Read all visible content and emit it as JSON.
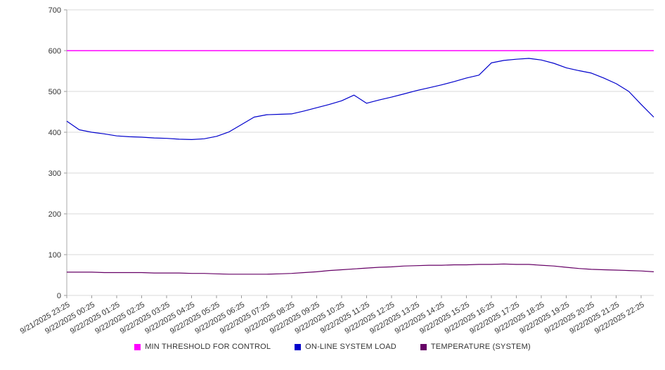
{
  "colors": {
    "background": "#ffffff",
    "grid": "#d9d9d9",
    "axis": "#aaaaaa",
    "tick": "#999999",
    "label": "#333333"
  },
  "chart_data": {
    "type": "line",
    "title": "",
    "xlabel": "",
    "ylabel": "",
    "grid": "horizontal-only",
    "legend_position": "bottom",
    "y_axis": {
      "min": 0,
      "max": 700,
      "tick_step": 100,
      "ticks": [
        0,
        100,
        200,
        300,
        400,
        500,
        600,
        700
      ]
    },
    "samples_per_tick": 2,
    "x_tick_labels": [
      "9/21/2025 23:25",
      "9/22/2025 00:25",
      "9/22/2025 01:25",
      "9/22/2025 02:25",
      "9/22/2025 03:25",
      "9/22/2025 04:25",
      "9/22/2025 05:25",
      "9/22/2025 06:25",
      "9/22/2025 07:25",
      "9/22/2025 08:25",
      "9/22/2025 09:25",
      "9/22/2025 10:25",
      "9/22/2025 11:25",
      "9/22/2025 12:25",
      "9/22/2025 13:25",
      "9/22/2025 14:25",
      "9/22/2025 15:25",
      "9/22/2025 16:25",
      "9/22/2025 17:25",
      "9/22/2025 18:25",
      "9/22/2025 19:25",
      "9/22/2025 20:25",
      "9/22/2025 21:25",
      "9/22/2025 22:25"
    ],
    "series": [
      {
        "name": "MIN THRESHOLD FOR CONTROL",
        "color": "#ff00ff",
        "style": "hline",
        "value": 600
      },
      {
        "name": "ON-LINE SYSTEM LOAD",
        "color": "#0000cc",
        "style": "line",
        "values": [
          427,
          406,
          400,
          396,
          391,
          389,
          388,
          386,
          385,
          383,
          382,
          384,
          390,
          401,
          419,
          437,
          443,
          444,
          445,
          452,
          460,
          468,
          477,
          491,
          471,
          479,
          486,
          494,
          502,
          509,
          516,
          524,
          533,
          540,
          570,
          576,
          579,
          581,
          577,
          569,
          558,
          551,
          545,
          533,
          519,
          500,
          468,
          437
        ]
      },
      {
        "name": "TEMPERATURE (SYSTEM)",
        "color": "#660066",
        "style": "line",
        "values": [
          57,
          57,
          57,
          56,
          56,
          56,
          56,
          55,
          55,
          55,
          54,
          54,
          53,
          52,
          52,
          52,
          52,
          53,
          54,
          56,
          58,
          61,
          63,
          65,
          67,
          69,
          70,
          72,
          73,
          74,
          74,
          75,
          75,
          76,
          76,
          77,
          76,
          76,
          74,
          72,
          69,
          66,
          64,
          63,
          62,
          61,
          60,
          58
        ]
      }
    ]
  }
}
